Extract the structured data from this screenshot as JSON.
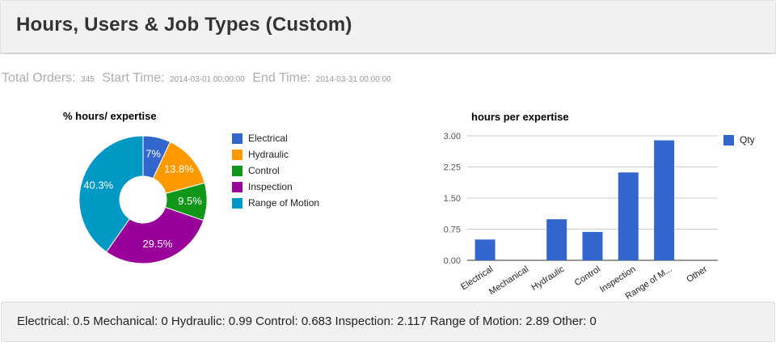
{
  "header": {
    "title": "Hours, Users & Job Types (Custom)"
  },
  "status": {
    "total_orders_label": "Total Orders:",
    "total_orders_value": "345",
    "start_time_label": "Start Time:",
    "start_time_value": "2014-03-01 00:00:00",
    "end_time_label": "End Time:",
    "end_time_value": "2014-03-31 00:00:00"
  },
  "chart_data": [
    {
      "type": "pie",
      "title": "% hours/ expertise",
      "donut_hole_ratio": 0.37,
      "labels": [
        "Electrical",
        "Hydraulic",
        "Control",
        "Inspection",
        "Range of Motion"
      ],
      "values": [
        7,
        13.8,
        9.5,
        29.5,
        40.3
      ],
      "slice_labels": [
        "7%",
        "13.8%",
        "9.5%",
        "29.5%",
        "40.3%"
      ],
      "colors": [
        "#3366cc",
        "#ff9900",
        "#109618",
        "#990099",
        "#0099c6"
      ],
      "legend_position": "right",
      "unit": "percent"
    },
    {
      "type": "bar",
      "title": "hours per expertise",
      "categories": [
        "Electrical",
        "Mechanical",
        "Hydraulic",
        "Control",
        "Inspection",
        "Range of Motion",
        "Other"
      ],
      "tick_labels": [
        "Electrical",
        "Mechanical",
        "Hydraulic",
        "Control",
        "Inspection",
        "Range of M...",
        "Other"
      ],
      "series": [
        {
          "name": "Qty",
          "values": [
            0.5,
            0,
            0.99,
            0.683,
            2.117,
            2.89,
            0
          ],
          "color": "#3366cc"
        }
      ],
      "ylim": [
        0,
        3
      ],
      "yticks": [
        0,
        0.75,
        1.5,
        2.25,
        3
      ],
      "ytick_labels": [
        "0.00",
        "0.75",
        "1.50",
        "2.25",
        "3.00"
      ],
      "grid": true,
      "legend_position": "right"
    }
  ],
  "summary": {
    "text": "Electrical: 0.5 Mechanical: 0 Hydraulic: 0.99 Control: 0.683 Inspection: 2.117 Range of Motion: 2.89 Other: 0"
  },
  "colors": {
    "panel_bg": "#f1f1f1",
    "panel_border": "#dddddd",
    "grid_line": "#cccccc",
    "axis_line": "#333333",
    "accent_blue": "#3366cc"
  }
}
